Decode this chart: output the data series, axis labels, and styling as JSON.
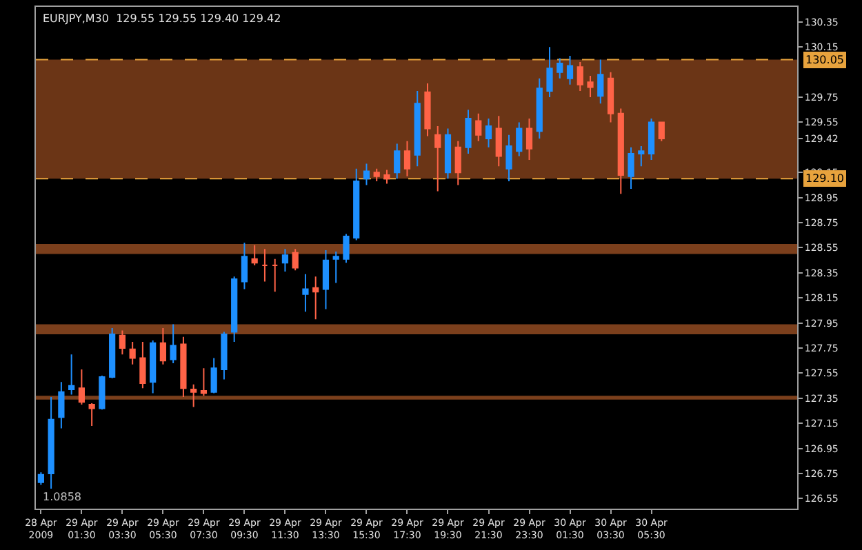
{
  "chart_data": {
    "type": "candlestick",
    "title": "EURJPY,M30  129.55 129.55 129.40 129.42",
    "x": [
      "2009-04-28T23:30",
      "2009-04-29T00:00",
      "2009-04-29T00:30",
      "2009-04-29T01:00",
      "2009-04-29T01:30",
      "2009-04-29T02:00",
      "2009-04-29T02:30",
      "2009-04-29T03:00",
      "2009-04-29T03:30",
      "2009-04-29T04:00",
      "2009-04-29T04:30",
      "2009-04-29T05:00",
      "2009-04-29T05:30",
      "2009-04-29T06:00",
      "2009-04-29T06:30",
      "2009-04-29T07:00",
      "2009-04-29T07:30",
      "2009-04-29T08:00",
      "2009-04-29T08:30",
      "2009-04-29T09:00",
      "2009-04-29T09:30",
      "2009-04-29T10:00",
      "2009-04-29T10:30",
      "2009-04-29T11:00",
      "2009-04-29T11:30",
      "2009-04-29T12:00",
      "2009-04-29T12:30",
      "2009-04-29T13:00",
      "2009-04-29T13:30",
      "2009-04-29T14:00",
      "2009-04-29T14:30",
      "2009-04-29T15:00",
      "2009-04-29T15:30",
      "2009-04-29T16:00",
      "2009-04-29T16:30",
      "2009-04-29T17:00",
      "2009-04-29T17:30",
      "2009-04-29T18:00",
      "2009-04-29T18:30",
      "2009-04-29T19:00",
      "2009-04-29T19:30",
      "2009-04-29T20:00",
      "2009-04-29T20:30",
      "2009-04-29T21:00",
      "2009-04-29T21:30",
      "2009-04-29T22:00",
      "2009-04-29T22:30",
      "2009-04-29T23:00",
      "2009-04-29T23:30",
      "2009-04-30T00:00",
      "2009-04-30T00:30",
      "2009-04-30T01:00",
      "2009-04-30T01:30",
      "2009-04-30T02:00",
      "2009-04-30T02:30",
      "2009-04-30T03:00",
      "2009-04-30T03:30",
      "2009-04-30T04:00",
      "2009-04-30T04:30",
      "2009-04-30T05:00",
      "2009-04-30T05:30",
      "2009-04-30T06:00"
    ],
    "ohlc": [
      [
        126.68,
        126.76,
        126.66,
        126.74
      ],
      [
        126.75,
        127.36,
        126.63,
        127.18
      ],
      [
        127.2,
        127.48,
        127.11,
        127.4
      ],
      [
        127.42,
        127.7,
        127.38,
        127.45
      ],
      [
        127.43,
        127.58,
        127.3,
        127.32
      ],
      [
        127.3,
        127.31,
        127.13,
        127.27
      ],
      [
        127.27,
        127.53,
        127.26,
        127.52
      ],
      [
        127.52,
        127.91,
        127.51,
        127.86
      ],
      [
        127.85,
        127.89,
        127.7,
        127.75
      ],
      [
        127.74,
        127.8,
        127.62,
        127.67
      ],
      [
        127.67,
        127.8,
        127.43,
        127.47
      ],
      [
        127.48,
        127.81,
        127.39,
        127.79
      ],
      [
        127.79,
        127.91,
        127.62,
        127.65
      ],
      [
        127.66,
        127.94,
        127.63,
        127.77
      ],
      [
        127.78,
        127.84,
        127.36,
        127.43
      ],
      [
        127.42,
        127.46,
        127.28,
        127.4
      ],
      [
        127.41,
        127.59,
        127.37,
        127.39
      ],
      [
        127.4,
        127.67,
        127.39,
        127.59
      ],
      [
        127.58,
        127.88,
        127.5,
        127.86
      ],
      [
        127.88,
        128.32,
        127.8,
        128.3
      ],
      [
        128.28,
        128.59,
        128.22,
        128.48
      ],
      [
        128.46,
        128.57,
        128.41,
        128.43
      ],
      [
        128.41,
        128.54,
        128.28,
        128.41
      ],
      [
        128.41,
        128.46,
        128.2,
        128.41
      ],
      [
        128.43,
        128.54,
        128.36,
        128.49
      ],
      [
        128.51,
        128.54,
        128.37,
        128.39
      ],
      [
        128.18,
        128.34,
        128.04,
        128.22
      ],
      [
        128.23,
        128.32,
        127.98,
        128.2
      ],
      [
        128.22,
        128.53,
        128.06,
        128.45
      ],
      [
        128.46,
        128.52,
        128.27,
        128.48
      ],
      [
        128.46,
        128.66,
        128.43,
        128.64
      ],
      [
        128.63,
        129.18,
        128.61,
        129.08
      ],
      [
        129.1,
        129.22,
        129.05,
        129.16
      ],
      [
        129.15,
        129.18,
        129.08,
        129.12
      ],
      [
        129.13,
        129.17,
        129.06,
        129.1
      ],
      [
        129.15,
        129.38,
        129.1,
        129.32
      ],
      [
        129.32,
        129.4,
        129.12,
        129.18
      ],
      [
        129.29,
        129.8,
        129.2,
        129.7
      ],
      [
        129.79,
        129.86,
        129.44,
        129.5
      ],
      [
        129.45,
        129.52,
        129.0,
        129.35
      ],
      [
        129.15,
        129.5,
        129.1,
        129.45
      ],
      [
        129.35,
        129.4,
        129.05,
        129.15
      ],
      [
        129.35,
        129.65,
        129.3,
        129.58
      ],
      [
        129.56,
        129.62,
        129.4,
        129.45
      ],
      [
        129.42,
        129.58,
        129.35,
        129.52
      ],
      [
        129.5,
        129.6,
        129.2,
        129.28
      ],
      [
        129.18,
        129.45,
        129.08,
        129.36
      ],
      [
        129.32,
        129.55,
        129.28,
        129.5
      ],
      [
        129.5,
        129.58,
        129.25,
        129.34
      ],
      [
        129.48,
        129.9,
        129.42,
        129.82
      ],
      [
        129.8,
        130.15,
        129.75,
        129.98
      ],
      [
        129.95,
        130.06,
        129.9,
        130.02
      ],
      [
        129.9,
        130.08,
        129.85,
        130.0
      ],
      [
        129.99,
        130.03,
        129.8,
        129.85
      ],
      [
        129.87,
        129.92,
        129.75,
        129.83
      ],
      [
        129.76,
        130.05,
        129.7,
        129.93
      ],
      [
        129.9,
        129.95,
        129.55,
        129.62
      ],
      [
        129.62,
        129.66,
        128.98,
        129.13
      ],
      [
        129.12,
        129.35,
        129.02,
        129.3
      ],
      [
        129.3,
        129.36,
        129.2,
        129.32
      ],
      [
        129.3,
        129.58,
        129.25,
        129.55
      ],
      [
        129.55,
        129.55,
        129.4,
        129.42
      ]
    ],
    "colors": [
      "#1e90ff",
      "#1e90ff",
      "#1e90ff",
      "#1e90ff",
      "#ff6347",
      "#ff6347",
      "#1e90ff",
      "#1e90ff",
      "#ff6347",
      "#ff6347",
      "#ff6347",
      "#1e90ff",
      "#ff6347",
      "#1e90ff",
      "#ff6347",
      "#ff6347",
      "#ff6347",
      "#1e90ff",
      "#1e90ff",
      "#1e90ff",
      "#1e90ff",
      "#ff6347",
      "#ff6347",
      "#ff6347",
      "#1e90ff",
      "#ff6347",
      "#1e90ff",
      "#ff6347",
      "#1e90ff",
      "#1e90ff",
      "#1e90ff",
      "#1e90ff",
      "#1e90ff",
      "#ff6347",
      "#ff6347",
      "#1e90ff",
      "#ff6347",
      "#1e90ff",
      "#ff6347",
      "#ff6347",
      "#1e90ff",
      "#ff6347",
      "#1e90ff",
      "#ff6347",
      "#1e90ff",
      "#ff6347",
      "#1e90ff",
      "#1e90ff",
      "#ff6347",
      "#1e90ff",
      "#1e90ff",
      "#1e90ff",
      "#1e90ff",
      "#ff6347",
      "#ff6347",
      "#1e90ff",
      "#ff6347",
      "#ff6347",
      "#1e90ff",
      "#1e90ff",
      "#1e90ff",
      "#ff6347"
    ],
    "xlim": [
      "2009-04-28T23:15",
      "2009-04-30T12:40"
    ],
    "xticks": [
      {
        "value": "2009-04-28T23:30",
        "label": "28 Apr 2009"
      },
      {
        "value": "2009-04-29T01:30",
        "label": "29 Apr 01:30"
      },
      {
        "value": "2009-04-29T03:30",
        "label": "29 Apr 03:30"
      },
      {
        "value": "2009-04-29T05:30",
        "label": "29 Apr 05:30"
      },
      {
        "value": "2009-04-29T07:30",
        "label": "29 Apr 07:30"
      },
      {
        "value": "2009-04-29T09:30",
        "label": "29 Apr 09:30"
      },
      {
        "value": "2009-04-29T11:30",
        "label": "29 Apr 11:30"
      },
      {
        "value": "2009-04-29T13:30",
        "label": "29 Apr 13:30"
      },
      {
        "value": "2009-04-29T15:30",
        "label": "29 Apr 15:30"
      },
      {
        "value": "2009-04-29T17:30",
        "label": "29 Apr 17:30"
      },
      {
        "value": "2009-04-29T19:30",
        "label": "29 Apr 19:30"
      },
      {
        "value": "2009-04-29T21:30",
        "label": "29 Apr 21:30"
      },
      {
        "value": "2009-04-29T23:30",
        "label": "29 Apr 23:30"
      },
      {
        "value": "2009-04-30T01:30",
        "label": "30 Apr 01:30"
      },
      {
        "value": "2009-04-30T03:30",
        "label": "30 Apr 03:30"
      },
      {
        "value": "2009-04-30T05:30",
        "label": "30 Apr 05:30"
      }
    ],
    "ylim": [
      126.47,
      130.47
    ],
    "yticks": [
      126.55,
      126.75,
      126.95,
      127.15,
      127.35,
      127.55,
      127.75,
      127.95,
      128.15,
      128.35,
      128.55,
      128.75,
      128.95,
      129.15,
      {
        "value": 129.42,
        "label": "129.42"
      },
      129.55,
      129.75,
      130.15,
      130.35
    ],
    "ref_lines": [
      {
        "axis": "y",
        "value": 130.05,
        "label": "130.05",
        "color": "#e8a33d",
        "line_style": "dashed"
      },
      {
        "axis": "y",
        "value": 129.1,
        "label": "129.10",
        "color": "#e8a33d",
        "line_style": "dashed"
      }
    ],
    "bands": [
      {
        "axis": "y",
        "from": 129.1,
        "to": 130.05,
        "color": "#6b3516"
      },
      {
        "axis": "y",
        "from": 128.5,
        "to": 128.58,
        "color": "#7b3f1c"
      },
      {
        "axis": "y",
        "from": 127.86,
        "to": 127.94,
        "color": "#7b3f1c"
      },
      {
        "axis": "y",
        "from": 127.34,
        "to": 127.37,
        "color": "#7b3f1c"
      }
    ],
    "annotations": [
      "1.0858"
    ],
    "grid": false
  }
}
